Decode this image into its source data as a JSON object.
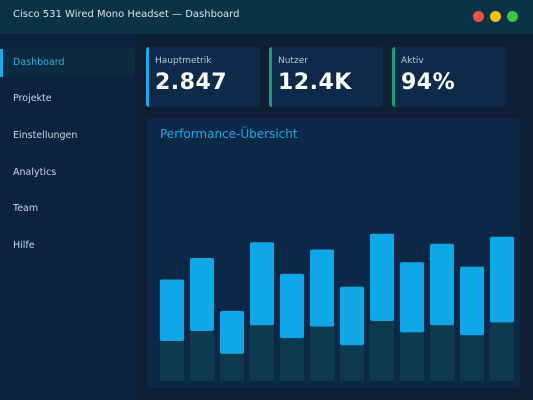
{
  "window": {
    "title": "Cisco 531 Wired Mono Headset — Dashboard"
  },
  "sidebar": {
    "items": [
      {
        "label": "Dashboard",
        "active": true
      },
      {
        "label": "Projekte",
        "active": false
      },
      {
        "label": "Einstellungen",
        "active": false
      },
      {
        "label": "Analytics",
        "active": false
      },
      {
        "label": "Team",
        "active": false
      },
      {
        "label": "Hilfe",
        "active": false
      }
    ]
  },
  "cards": [
    {
      "label": "Hauptmetrik",
      "value": "2.847",
      "accent": "#1da8e6"
    },
    {
      "label": "Nutzer",
      "value": "12.4K",
      "accent": "#14a07c"
    },
    {
      "label": "Aktiv",
      "value": "94%",
      "accent": "#14a07c"
    }
  ],
  "colors": {
    "bar": "#0fa7e8",
    "bar_shadow": "#0d3a4e"
  },
  "performance": {
    "title": "Performance-Übersicht"
  },
  "chart_data": {
    "type": "bar",
    "range_bars": true,
    "grid": false,
    "ylim": [
      0,
      100
    ],
    "series": [
      {
        "lows": [
          28,
          35,
          19,
          39,
          30,
          38,
          25,
          42,
          34,
          39,
          32,
          41
        ],
        "highs": [
          71,
          86,
          49,
          97,
          75,
          92,
          66,
          103,
          83,
          96,
          80,
          101
        ]
      }
    ]
  }
}
